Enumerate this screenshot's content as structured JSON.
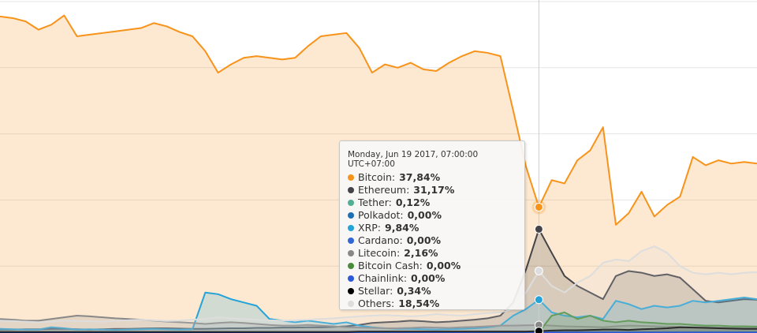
{
  "chart_data": {
    "type": "area",
    "ylim": [
      0,
      100
    ],
    "yticks": [
      0,
      20,
      40,
      60,
      80,
      100
    ],
    "grid": true,
    "series": [
      {
        "name": "Bitcoin",
        "color": "#f7931a",
        "values": [
          95.5,
          95.0,
          94.0,
          91.5,
          93.0,
          95.8,
          89.5,
          90.0,
          90.5,
          91.0,
          91.5,
          92.0,
          93.5,
          92.5,
          90.8,
          89.5,
          85.0,
          78.5,
          81.0,
          83.0,
          83.5,
          83.0,
          82.5,
          83.0,
          86.5,
          89.5,
          90.0,
          90.5,
          86.0,
          78.5,
          81.0,
          80.0,
          81.5,
          79.5,
          79.0,
          81.5,
          83.5,
          85.0,
          84.5,
          83.5,
          67.0,
          50.0,
          37.84,
          46.0,
          45.0,
          52.0,
          55.0,
          62.0,
          32.5,
          36.0,
          42.5,
          35.0,
          38.5,
          41.0,
          53.0,
          50.5,
          52.0,
          51.0,
          51.5,
          51.0
        ]
      },
      {
        "name": "Ethereum",
        "color": "#434348",
        "values": [
          0.8,
          0.8,
          0.9,
          0.9,
          1.0,
          1.0,
          0.9,
          0.8,
          0.9,
          1.0,
          1.0,
          1.1,
          1.2,
          1.2,
          1.1,
          1.0,
          1.0,
          1.1,
          1.2,
          1.2,
          1.3,
          1.3,
          1.4,
          1.4,
          1.5,
          1.5,
          1.6,
          1.8,
          2.2,
          2.8,
          3.0,
          3.2,
          3.5,
          3.3,
          3.0,
          3.2,
          3.5,
          3.8,
          4.2,
          5.0,
          9.0,
          19.0,
          31.17,
          24.0,
          17.0,
          14.0,
          12.0,
          10.0,
          17.0,
          18.5,
          18.0,
          17.0,
          17.5,
          16.5,
          13.0,
          9.5,
          9.0,
          9.5,
          10.0,
          9.8
        ]
      },
      {
        "name": "Tether",
        "color": "#50af95",
        "values": [
          0.1,
          0.1,
          0.1,
          0.1,
          0.1,
          0.1,
          0.1,
          0.1,
          0.1,
          0.1,
          0.1,
          0.1,
          0.1,
          0.1,
          0.1,
          0.1,
          0.1,
          0.1,
          0.1,
          0.1,
          0.1,
          0.1,
          0.1,
          0.1,
          0.1,
          0.1,
          0.1,
          0.1,
          0.1,
          0.1,
          0.1,
          0.1,
          0.1,
          0.1,
          0.1,
          0.1,
          0.1,
          0.1,
          0.1,
          0.1,
          0.1,
          0.1,
          0.12,
          0.1,
          0.1,
          0.1,
          0.1,
          0.1,
          0.1,
          0.1,
          0.1,
          0.1,
          0.1,
          0.1,
          0.1,
          0.1,
          0.1,
          0.1,
          0.1,
          0.1
        ]
      },
      {
        "name": "Polkadot",
        "color": "#1f6fb4",
        "values": [
          0,
          0,
          0,
          0,
          0,
          0,
          0,
          0,
          0,
          0,
          0,
          0,
          0,
          0,
          0,
          0,
          0,
          0,
          0,
          0,
          0,
          0,
          0,
          0,
          0,
          0,
          0,
          0,
          0,
          0,
          0,
          0,
          0,
          0,
          0,
          0,
          0,
          0,
          0,
          0,
          0,
          0,
          0,
          0,
          0,
          0,
          0,
          0,
          0,
          0,
          0,
          0,
          0,
          0,
          0,
          0,
          0,
          0,
          0,
          0
        ]
      },
      {
        "name": "XRP",
        "color": "#23a3d8",
        "values": [
          1.0,
          0.9,
          0.8,
          0.8,
          1.5,
          1.2,
          0.8,
          0.9,
          0.8,
          0.7,
          0.8,
          0.9,
          1.0,
          0.9,
          0.8,
          0.9,
          12.0,
          11.5,
          10.0,
          9.0,
          8.0,
          4.0,
          3.5,
          3.0,
          3.5,
          3.0,
          2.5,
          3.0,
          2.0,
          1.5,
          1.2,
          1.0,
          1.0,
          0.9,
          0.8,
          0.9,
          1.0,
          1.2,
          1.5,
          2.0,
          5.0,
          7.0,
          9.84,
          6.0,
          5.0,
          4.5,
          5.0,
          4.0,
          9.5,
          8.5,
          7.0,
          8.0,
          7.5,
          8.0,
          9.5,
          9.0,
          9.5,
          10.0,
          10.5,
          10.0
        ]
      },
      {
        "name": "Cardano",
        "color": "#3467d6",
        "values": [
          0,
          0,
          0,
          0,
          0,
          0,
          0,
          0,
          0,
          0,
          0,
          0,
          0,
          0,
          0,
          0,
          0,
          0,
          0,
          0,
          0,
          0,
          0,
          0,
          0,
          0,
          0,
          0,
          0,
          0,
          0,
          0,
          0,
          0,
          0,
          0,
          0,
          0,
          0,
          0,
          0,
          0,
          0,
          0,
          0,
          0,
          0,
          0,
          0,
          0,
          0,
          0,
          0,
          0,
          0,
          0,
          0,
          0,
          0,
          0
        ]
      },
      {
        "name": "Litecoin",
        "color": "#888888",
        "values": [
          4.0,
          3.8,
          3.5,
          3.5,
          4.0,
          4.5,
          5.0,
          4.8,
          4.5,
          4.2,
          4.0,
          3.8,
          3.5,
          3.2,
          3.0,
          2.8,
          2.5,
          2.8,
          3.0,
          2.8,
          2.5,
          2.2,
          2.0,
          2.0,
          2.2,
          2.0,
          1.8,
          1.5,
          1.4,
          1.3,
          1.2,
          1.2,
          1.3,
          1.5,
          1.4,
          1.3,
          1.5,
          1.6,
          1.8,
          2.0,
          2.0,
          2.1,
          2.16,
          2.0,
          1.8,
          1.7,
          1.6,
          1.5,
          1.8,
          2.0,
          1.9,
          1.8,
          1.7,
          1.6,
          1.5,
          1.5,
          1.4,
          1.4,
          1.3,
          1.3
        ]
      },
      {
        "name": "Bitcoin Cash",
        "color": "#478c3b",
        "values": [
          null,
          null,
          null,
          null,
          null,
          null,
          null,
          null,
          null,
          null,
          null,
          null,
          null,
          null,
          null,
          null,
          null,
          null,
          null,
          null,
          null,
          null,
          null,
          null,
          null,
          null,
          null,
          null,
          null,
          null,
          null,
          null,
          null,
          null,
          null,
          null,
          null,
          null,
          null,
          null,
          null,
          null,
          0.0,
          5.0,
          6.0,
          4.0,
          5.0,
          3.5,
          3.0,
          3.5,
          3.0,
          2.8,
          2.5,
          2.5,
          2.2,
          2.0,
          2.0,
          1.8,
          1.8,
          1.7
        ]
      },
      {
        "name": "Chainlink",
        "color": "#2a5ada",
        "values": [
          0,
          0,
          0,
          0,
          0,
          0,
          0,
          0,
          0,
          0,
          0,
          0,
          0,
          0,
          0,
          0,
          0,
          0,
          0,
          0,
          0,
          0,
          0,
          0,
          0,
          0,
          0,
          0,
          0,
          0,
          0,
          0,
          0,
          0,
          0,
          0,
          0,
          0,
          0,
          0,
          0,
          0,
          0,
          0,
          0,
          0,
          0,
          0,
          0,
          0,
          0,
          0,
          0,
          0,
          0,
          0,
          0,
          0,
          0,
          0
        ]
      },
      {
        "name": "Stellar",
        "color": "#000000",
        "values": [
          0.1,
          0.1,
          0.1,
          0.1,
          0.1,
          0.1,
          0.1,
          0.1,
          0.1,
          0.1,
          0.1,
          0.1,
          0.1,
          0.1,
          0.1,
          0.1,
          0.1,
          0.1,
          0.1,
          0.1,
          0.1,
          0.1,
          0.1,
          0.1,
          0.1,
          0.1,
          0.1,
          0.1,
          0.2,
          0.2,
          0.2,
          0.2,
          0.2,
          0.2,
          0.2,
          0.2,
          0.2,
          0.2,
          0.2,
          0.2,
          0.2,
          0.2,
          0.34,
          0.5,
          0.6,
          0.6,
          0.7,
          0.8,
          0.8,
          0.7,
          0.9,
          1.0,
          1.2,
          1.5,
          1.4,
          1.3,
          1.2,
          1.1,
          1.0,
          1.0
        ]
      },
      {
        "name": "Others",
        "color": "#dddddd",
        "values": [
          3.5,
          3.4,
          3.2,
          3.0,
          3.2,
          3.5,
          3.4,
          3.3,
          3.2,
          3.5,
          3.6,
          3.8,
          3.6,
          3.4,
          3.5,
          3.8,
          4.0,
          4.5,
          4.2,
          4.0,
          3.8,
          3.6,
          3.5,
          3.6,
          3.8,
          4.0,
          4.2,
          4.5,
          4.8,
          5.0,
          5.2,
          5.0,
          4.8,
          5.0,
          5.5,
          5.2,
          5.0,
          5.5,
          5.8,
          6.0,
          7.0,
          12.0,
          18.54,
          14.0,
          12.0,
          15.0,
          17.0,
          21.0,
          22.0,
          21.5,
          24.5,
          26.0,
          24.0,
          20.0,
          18.0,
          17.5,
          18.0,
          17.5,
          18.0,
          18.2
        ]
      }
    ],
    "tooltip": {
      "title": "Monday, Jun 19 2017, 07:00:00 UTC+07:00",
      "separator": ":",
      "value_labels": [
        "37,84%",
        "31,17%",
        "0,12%",
        "0,00%",
        "9,84%",
        "0,00%",
        "2,16%",
        "0,00%",
        "0,00%",
        "0,34%",
        "18,54%"
      ]
    }
  }
}
